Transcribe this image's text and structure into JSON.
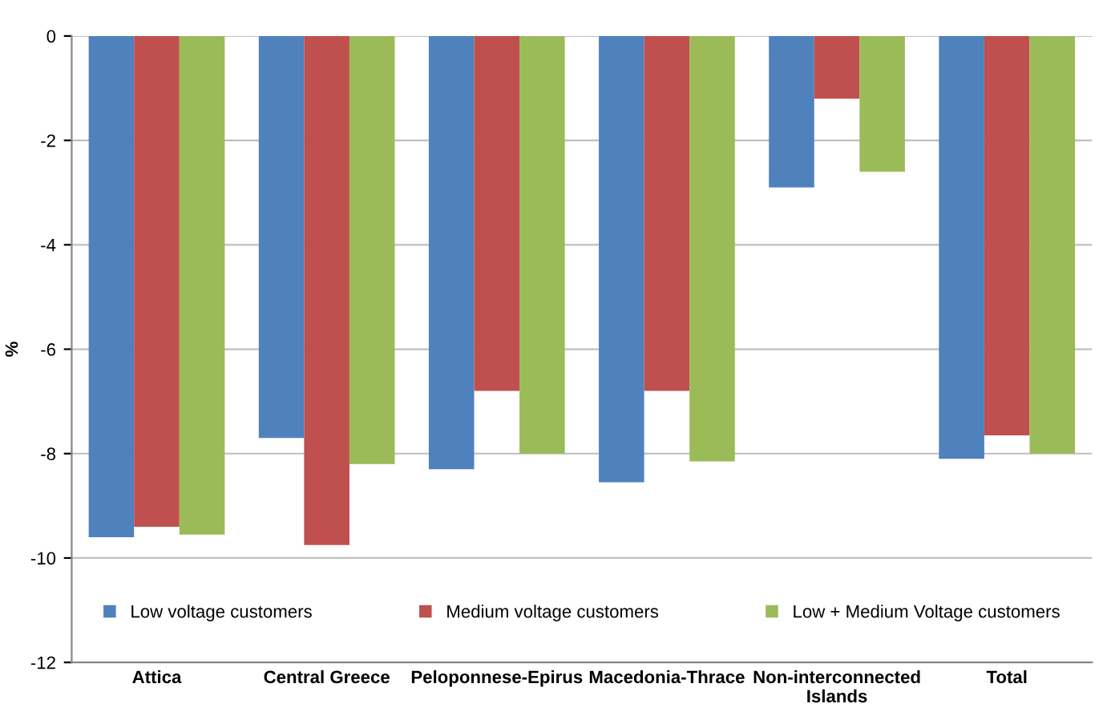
{
  "chart_data": {
    "type": "bar",
    "ylabel": "%",
    "categories": [
      "Attica",
      "Central Greece",
      "Peloponnese-Epirus",
      "Macedonia-Thrace",
      "Non-interconnected\nIslands",
      "Total"
    ],
    "series": [
      {
        "name": "Low voltage customers",
        "color": "#4f81bd",
        "values": [
          -9.6,
          -7.7,
          -8.3,
          -8.55,
          -2.9,
          -8.1
        ]
      },
      {
        "name": "Medium voltage customers",
        "color": "#c0504d",
        "values": [
          -9.4,
          -9.75,
          -6.8,
          -6.8,
          -1.2,
          -7.65
        ]
      },
      {
        "name": "Low + Medium Voltage customers",
        "color": "#9bbb59",
        "values": [
          -9.55,
          -8.2,
          -8.0,
          -8.15,
          -2.6,
          -8.0
        ]
      }
    ],
    "ylim": [
      -12,
      0
    ],
    "yticks": [
      -12,
      -10,
      -8,
      -6,
      -4,
      -2,
      0
    ],
    "grid": "y",
    "legend": "bottom"
  }
}
